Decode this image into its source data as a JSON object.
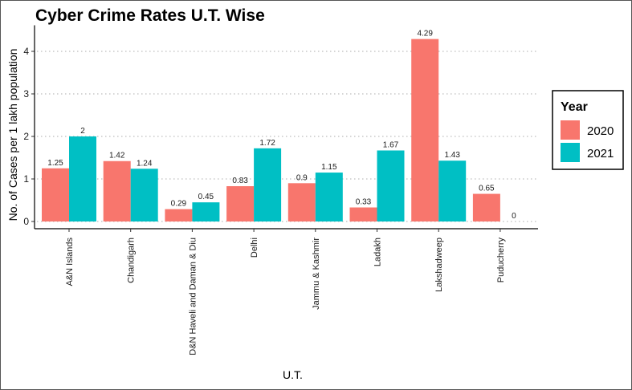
{
  "chart_data": {
    "type": "bar",
    "title": "Cyber Crime Rates U.T. Wise",
    "xlabel": "U.T.",
    "ylabel": "No. of Cases per 1 lakh population",
    "categories": [
      "A&N Islands",
      "Chandigarh",
      "D&N Haveli and Daman & Diu",
      "Delhi",
      "Jammu & Kashmir",
      "Ladakh",
      "Lakshadweep",
      "Puducherry"
    ],
    "series": [
      {
        "name": "2020",
        "color": "#F8766D",
        "values": [
          1.25,
          1.42,
          0.29,
          0.83,
          0.9,
          0.33,
          4.29,
          0.65
        ]
      },
      {
        "name": "2021",
        "color": "#00BFC4",
        "values": [
          2,
          1.24,
          0.45,
          1.72,
          1.15,
          1.67,
          1.43,
          0
        ]
      }
    ],
    "ylim": [
      0,
      4.5
    ],
    "yticks": [
      0,
      1,
      2,
      3,
      4
    ],
    "grid": "horizontal dotted",
    "legend": {
      "title": "Year",
      "position": "right"
    }
  }
}
